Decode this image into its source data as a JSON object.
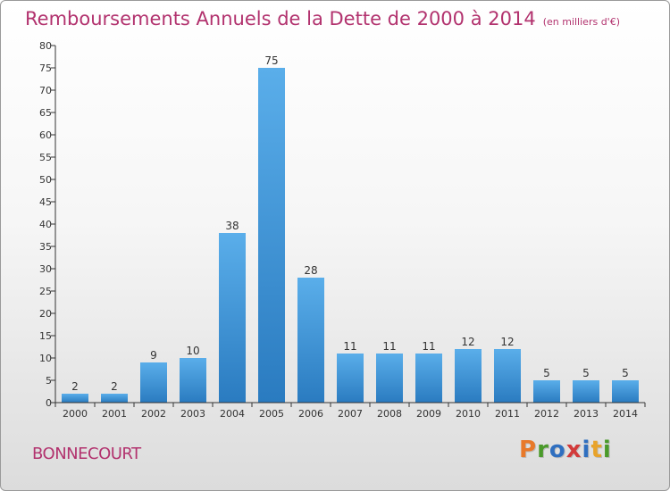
{
  "header": {
    "title": "Remboursements Annuels de la Dette de 2000 à 2014",
    "unit": "(en milliers d'€)"
  },
  "footer": {
    "commune": "BONNECOURT",
    "logo_text": "Proxiti"
  },
  "colors": {
    "title": "#b2326e",
    "bar_light": "#5aaeea",
    "bar_dark": "#2a7bc0",
    "logo_letters": [
      "#e8792a",
      "#4a9a2a",
      "#2f6fc0",
      "#d23a3a",
      "#2f6fc0",
      "#e8a32a",
      "#4a9a2a"
    ]
  },
  "chart_data": {
    "type": "bar",
    "title": "Remboursements Annuels de la Dette de 2000 à 2014",
    "xlabel": "",
    "ylabel": "",
    "categories": [
      "2000",
      "2001",
      "2002",
      "2003",
      "2004",
      "2005",
      "2006",
      "2007",
      "2008",
      "2009",
      "2010",
      "2011",
      "2012",
      "2013",
      "2014"
    ],
    "values": [
      2,
      2,
      9,
      10,
      38,
      75,
      28,
      11,
      11,
      11,
      12,
      12,
      5,
      5,
      5
    ],
    "ylim": [
      0,
      80
    ],
    "yticks": [
      0,
      5,
      10,
      15,
      20,
      25,
      30,
      35,
      40,
      45,
      50,
      55,
      60,
      65,
      70,
      75,
      80
    ],
    "grid": false,
    "legend": "none"
  }
}
